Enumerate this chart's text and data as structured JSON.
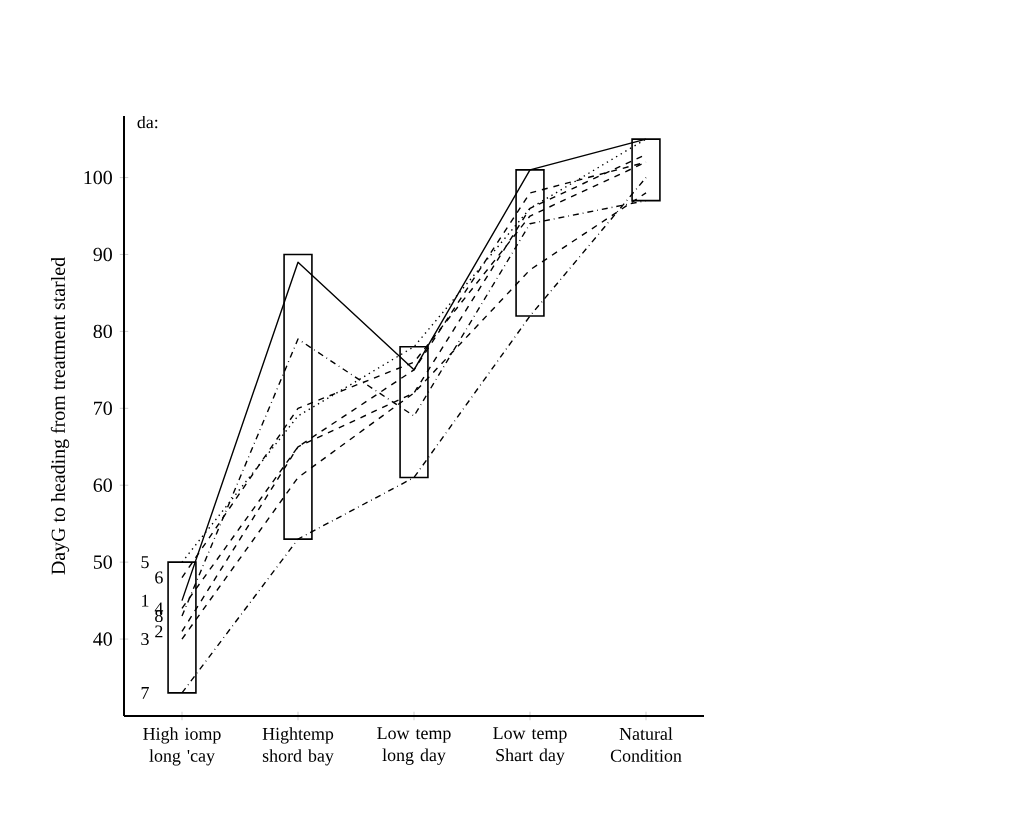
{
  "chart_data": {
    "type": "line",
    "ylabel": "DayG to heading from treatment starled",
    "annotations": [
      "da:"
    ],
    "categories": [
      "High iomp long 'cay",
      "Hightemp shord bay",
      "Low temp long day",
      "Low temp Shart day",
      "Natural Condition"
    ],
    "ylim": [
      30,
      108
    ],
    "yticks": [
      40,
      50,
      60,
      70,
      80,
      90,
      100
    ],
    "marker": "none",
    "series": [
      {
        "type": "bar",
        "color": "#000000",
        "base": [
          33,
          53,
          61,
          82,
          97
        ],
        "values": [
          17,
          37,
          17,
          19,
          8
        ]
      },
      {
        "name": "1",
        "color": "#000000",
        "line_style": "solid",
        "values": [
          45,
          89,
          75,
          101,
          105
        ]
      },
      {
        "name": "2",
        "color": "#000000",
        "line_style": "dashed",
        "values": [
          41,
          65,
          72,
          96,
          103
        ]
      },
      {
        "name": "3",
        "color": "#000000",
        "line_style": "dashed",
        "values": [
          40,
          61,
          72,
          88,
          98
        ]
      },
      {
        "name": "4",
        "color": "#000000",
        "line_style": "dashed",
        "values": [
          44,
          65,
          75,
          98,
          102
        ]
      },
      {
        "name": "5",
        "color": "#000000",
        "line_style": "dotted",
        "values": [
          50,
          69,
          78,
          96,
          105
        ]
      },
      {
        "name": "6",
        "color": "#000000",
        "line_style": "dashed",
        "values": [
          48,
          70,
          76,
          95,
          102
        ]
      },
      {
        "name": "7",
        "color": "#000000",
        "line_style": "dashdotted",
        "values": [
          33,
          53,
          61,
          82,
          100
        ]
      },
      {
        "name": "8",
        "color": "#000000",
        "line_style": "dashdotted",
        "values": [
          43,
          79,
          69,
          94,
          97
        ]
      }
    ]
  }
}
